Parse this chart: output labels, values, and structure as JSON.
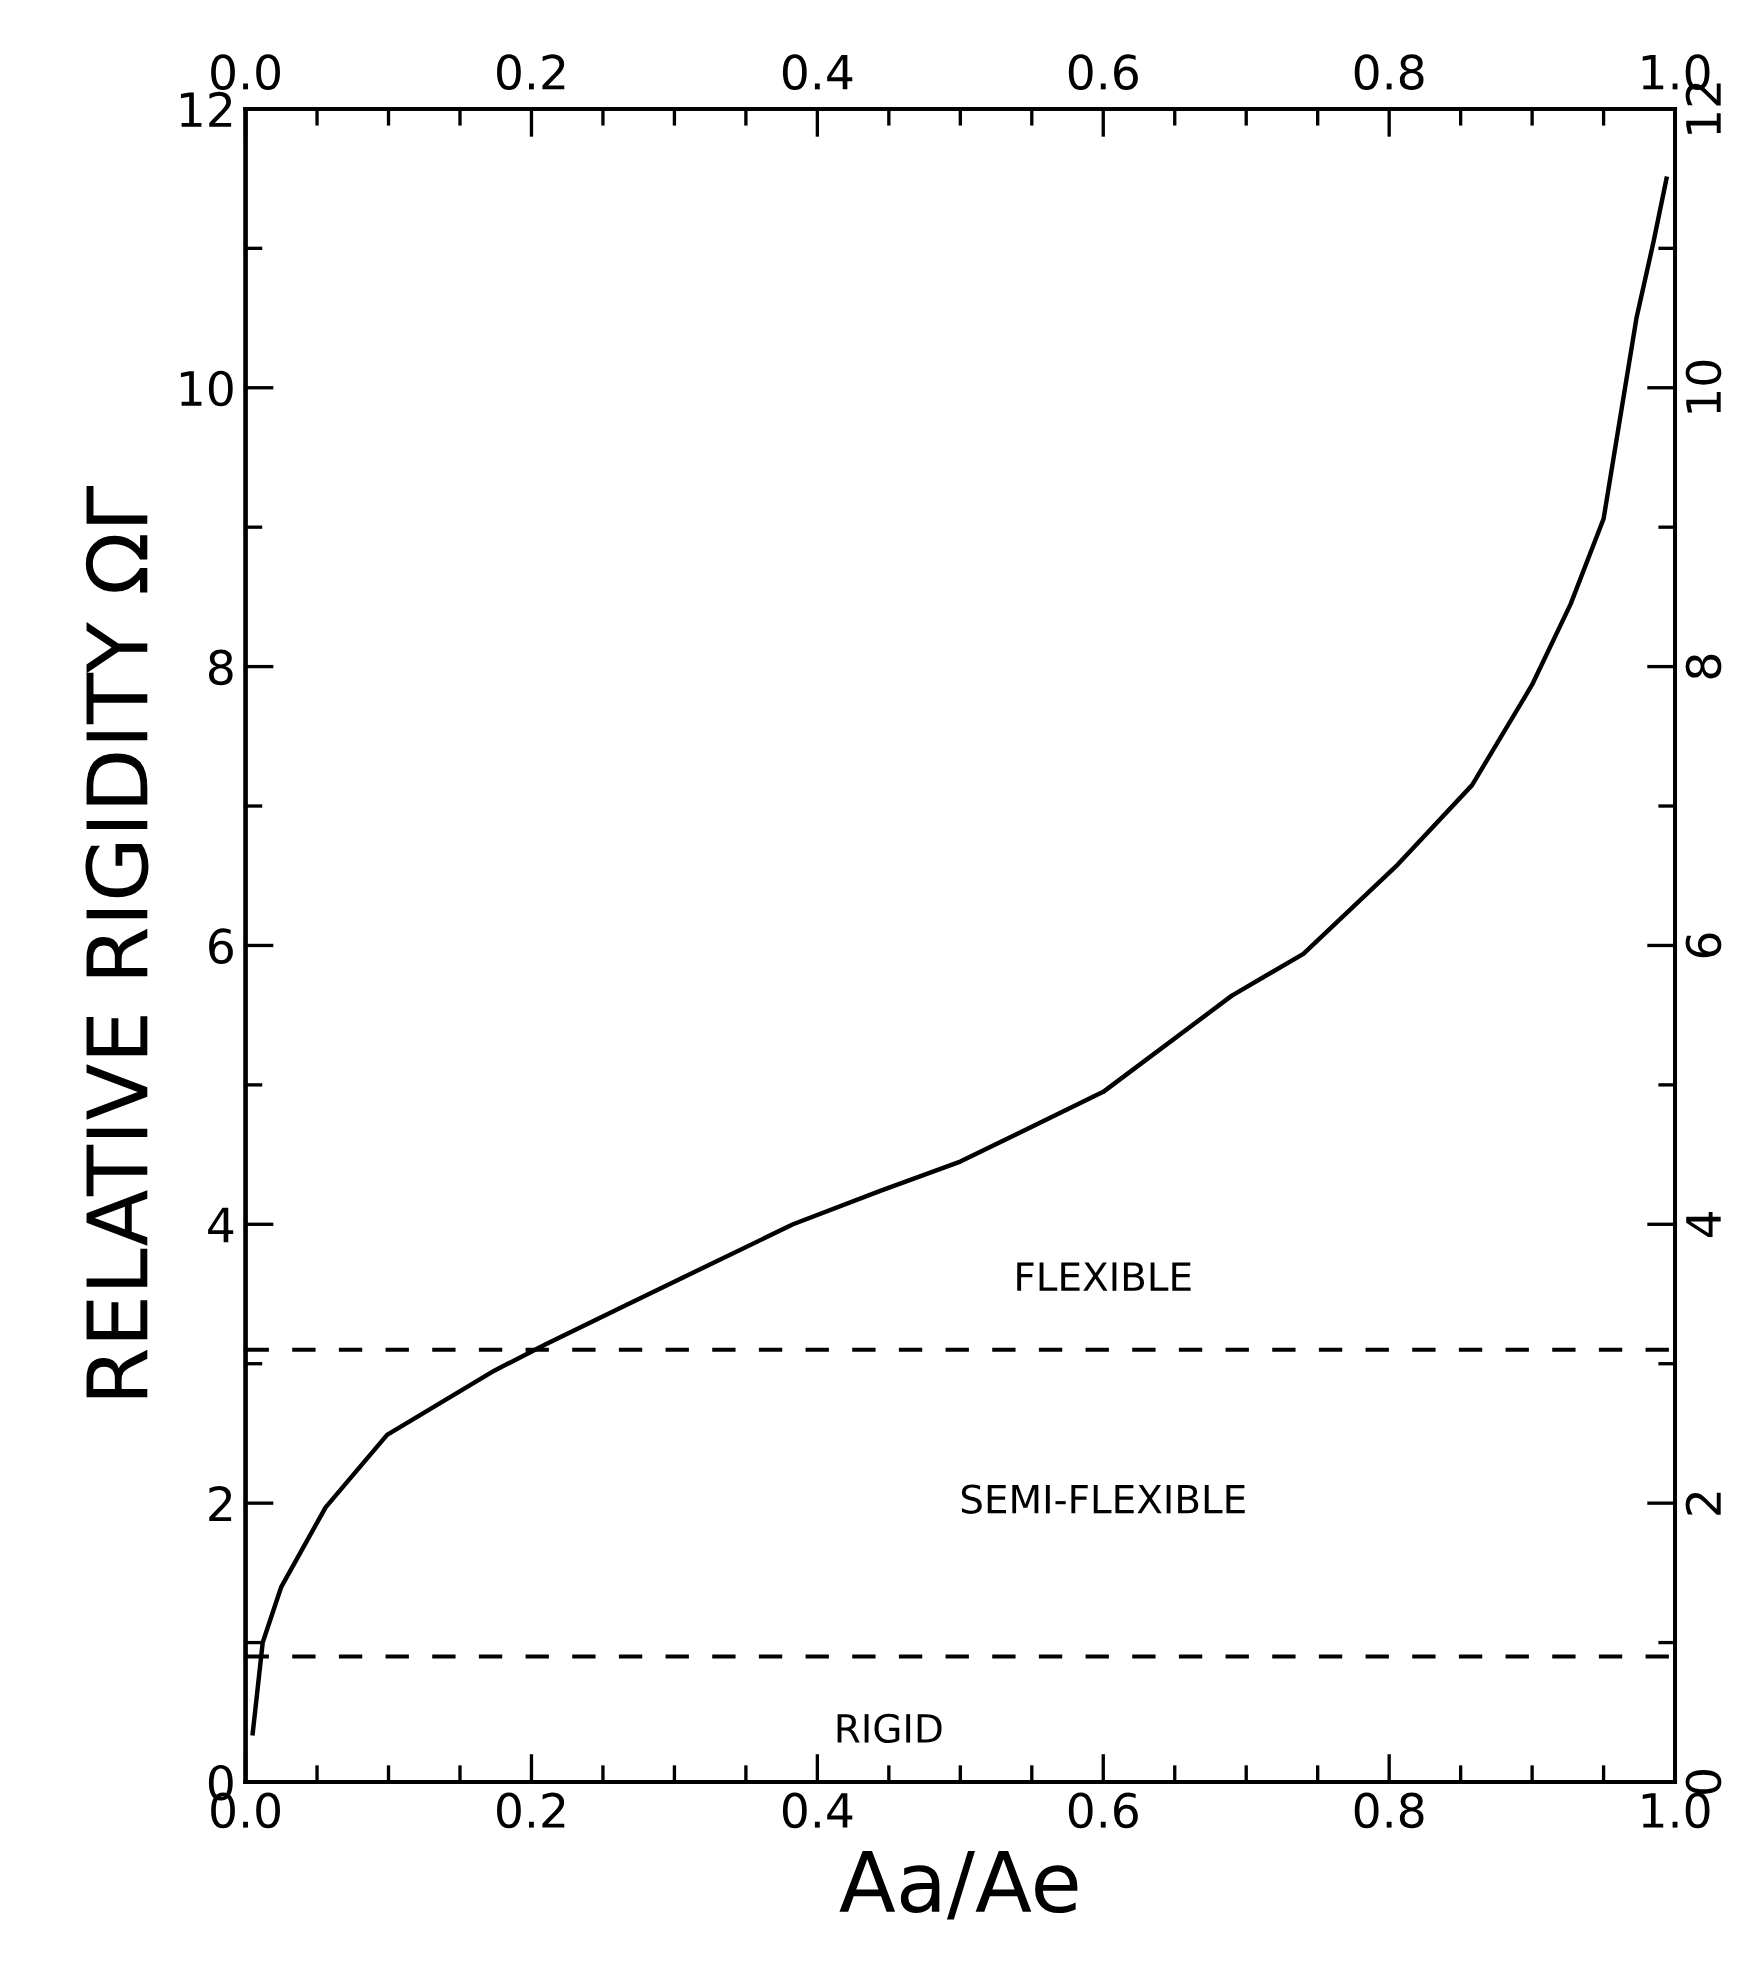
{
  "chart_data": {
    "type": "line",
    "xlabel": "Aa/Ae",
    "ylabel": "RELATIVE RIGIDITY ΩΓ",
    "xlim": [
      0,
      1
    ],
    "ylim": [
      0,
      12
    ],
    "xticks": [
      {
        "value": 0,
        "label": "0.0"
      },
      {
        "value": 0.2,
        "label": "0.2"
      },
      {
        "value": 0.4,
        "label": "0.4"
      },
      {
        "value": 0.6,
        "label": "0.6"
      },
      {
        "value": 0.8,
        "label": "0.8"
      },
      {
        "value": 1,
        "label": "1.0"
      }
    ],
    "x2lim": [
      0,
      1
    ],
    "x2ticks": [
      {
        "value": 0,
        "label": "0.0"
      },
      {
        "value": 0.2,
        "label": "0.2"
      },
      {
        "value": 0.4,
        "label": "0.4"
      },
      {
        "value": 0.6,
        "label": "0.6"
      },
      {
        "value": 0.8,
        "label": "0.8"
      },
      {
        "value": 1,
        "label": "1.0"
      }
    ],
    "yticks": [
      0,
      2,
      4,
      6,
      8,
      10,
      12
    ],
    "y2lim": [
      0,
      12
    ],
    "y2ticks": [
      0,
      2,
      4,
      6,
      8,
      10,
      12
    ],
    "grid": false,
    "legend": false,
    "marker": "none",
    "line_style": "solid",
    "series": [
      {
        "color": "#000000",
        "x": [
          0.005,
          0.012,
          0.025,
          0.056,
          0.099,
          0.174,
          0.21,
          0.266,
          0.383,
          0.444,
          0.5,
          0.6,
          0.69,
          0.74,
          0.806,
          0.858,
          0.9,
          0.927,
          0.95,
          0.973,
          0.985,
          0.994
        ],
        "values": [
          0.35,
          1.0,
          1.4,
          1.97,
          2.49,
          2.95,
          3.14,
          3.42,
          4.0,
          4.24,
          4.45,
          4.95,
          5.64,
          5.94,
          6.58,
          7.15,
          7.87,
          8.45,
          9.06,
          10.5,
          11.05,
          11.5
        ]
      }
    ],
    "ref_lines": [
      {
        "axis": "y",
        "value": 3.1,
        "color": "#000000",
        "line_style": "dashed"
      },
      {
        "axis": "y",
        "value": 0.9,
        "color": "#000000",
        "line_style": "dashed"
      }
    ],
    "annotations": [
      "FLEXIBLE",
      "SEMI-FLEXIBLE",
      "RIGID"
    ]
  }
}
